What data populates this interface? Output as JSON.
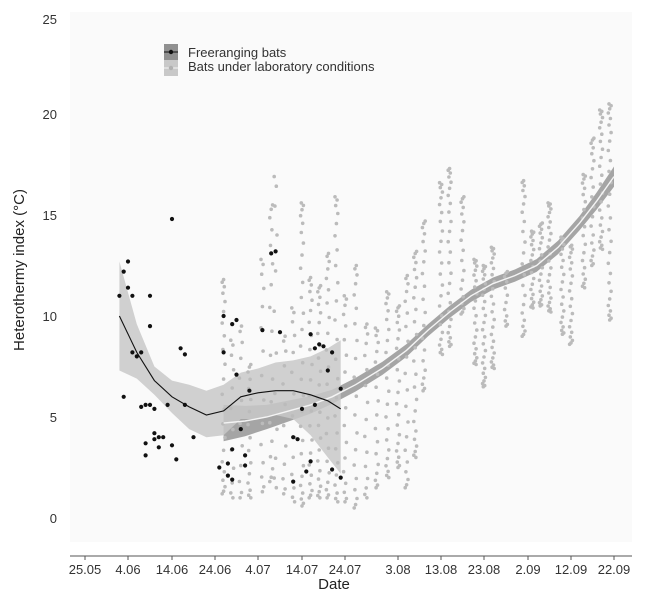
{
  "chart_data": {
    "type": "scatter",
    "xlabel": "Date",
    "ylabel": "Heterothermy index (°C)",
    "x_tick_labels": [
      "25.05",
      "4.06",
      "14.06",
      "24.06",
      "4.07",
      "14.07",
      "24.07",
      "3.08",
      "13.08",
      "23.08",
      "2.09",
      "12.09",
      "22.09"
    ],
    "y_tick_labels": [
      "0",
      "5",
      "10",
      "15",
      "20",
      "25"
    ],
    "xlim": [
      "2015-05-22",
      "2015-09-23"
    ],
    "ylim": [
      -1,
      25
    ],
    "grid": false,
    "legend_position": "top-left",
    "colors": {
      "freeranging": "#111111",
      "laboratory": "#bbbbbb",
      "free_band": "#c8c8c8",
      "lab_band": "#a5a5a5",
      "lab_fit_line": "#f4f4f4",
      "plot_background": "#fafafa"
    },
    "series": [
      {
        "name": "Freeranging bats",
        "marker": "dot",
        "points": [
          [
            "2015-06-02",
            11.0
          ],
          [
            "2015-06-03",
            12.2
          ],
          [
            "2015-06-03",
            6.0
          ],
          [
            "2015-06-04",
            12.7
          ],
          [
            "2015-06-04",
            11.4
          ],
          [
            "2015-06-05",
            8.2
          ],
          [
            "2015-06-05",
            11.0
          ],
          [
            "2015-06-06",
            8.0
          ],
          [
            "2015-06-07",
            8.2
          ],
          [
            "2015-06-07",
            5.5
          ],
          [
            "2015-06-08",
            5.6
          ],
          [
            "2015-06-08",
            3.7
          ],
          [
            "2015-06-08",
            3.1
          ],
          [
            "2015-06-09",
            11.0
          ],
          [
            "2015-06-09",
            9.5
          ],
          [
            "2015-06-09",
            5.6
          ],
          [
            "2015-06-10",
            4.2
          ],
          [
            "2015-06-10",
            3.9
          ],
          [
            "2015-06-10",
            5.4
          ],
          [
            "2015-06-11",
            4.0
          ],
          [
            "2015-06-11",
            3.5
          ],
          [
            "2015-06-12",
            4.0
          ],
          [
            "2015-06-13",
            5.6
          ],
          [
            "2015-06-14",
            14.8
          ],
          [
            "2015-06-14",
            3.6
          ],
          [
            "2015-06-15",
            2.9
          ],
          [
            "2015-06-16",
            8.4
          ],
          [
            "2015-06-17",
            8.1
          ],
          [
            "2015-06-17",
            5.6
          ],
          [
            "2015-06-19",
            4.0
          ],
          [
            "2015-06-25",
            2.5
          ],
          [
            "2015-06-26",
            10.0
          ],
          [
            "2015-06-26",
            8.2
          ],
          [
            "2015-06-27",
            2.7
          ],
          [
            "2015-06-27",
            2.1
          ],
          [
            "2015-06-28",
            9.6
          ],
          [
            "2015-06-28",
            3.4
          ],
          [
            "2015-06-28",
            1.9
          ],
          [
            "2015-06-29",
            9.8
          ],
          [
            "2015-06-29",
            7.1
          ],
          [
            "2015-06-30",
            4.4
          ],
          [
            "2015-07-01",
            3.1
          ],
          [
            "2015-07-01",
            2.6
          ],
          [
            "2015-07-02",
            6.3
          ],
          [
            "2015-07-05",
            9.3
          ],
          [
            "2015-07-07",
            13.1
          ],
          [
            "2015-07-08",
            13.2
          ],
          [
            "2015-07-09",
            9.2
          ],
          [
            "2015-07-12",
            4.0
          ],
          [
            "2015-07-12",
            1.8
          ],
          [
            "2015-07-13",
            3.9
          ],
          [
            "2015-07-14",
            5.4
          ],
          [
            "2015-07-15",
            2.3
          ],
          [
            "2015-07-16",
            2.8
          ],
          [
            "2015-07-16",
            9.1
          ],
          [
            "2015-07-17",
            8.4
          ],
          [
            "2015-07-17",
            5.6
          ],
          [
            "2015-07-18",
            8.6
          ],
          [
            "2015-07-19",
            8.5
          ],
          [
            "2015-07-20",
            7.3
          ],
          [
            "2015-07-21",
            2.4
          ],
          [
            "2015-07-21",
            8.2
          ],
          [
            "2015-07-23",
            2.0
          ],
          [
            "2015-07-23",
            6.4
          ]
        ],
        "fit": [
          [
            "2015-06-02",
            10.0
          ],
          [
            "2015-06-06",
            8.2
          ],
          [
            "2015-06-10",
            6.8
          ],
          [
            "2015-06-14",
            6.0
          ],
          [
            "2015-06-18",
            5.5
          ],
          [
            "2015-06-22",
            5.1
          ],
          [
            "2015-06-26",
            5.3
          ],
          [
            "2015-06-30",
            6.0
          ],
          [
            "2015-07-04",
            6.2
          ],
          [
            "2015-07-08",
            6.3
          ],
          [
            "2015-07-12",
            6.3
          ],
          [
            "2015-07-16",
            6.1
          ],
          [
            "2015-07-20",
            5.8
          ],
          [
            "2015-07-23",
            5.4
          ]
        ],
        "band_lower": [
          [
            "2015-06-02",
            7.3
          ],
          [
            "2015-06-06",
            6.9
          ],
          [
            "2015-06-10",
            6.1
          ],
          [
            "2015-06-14",
            5.2
          ],
          [
            "2015-06-18",
            4.4
          ],
          [
            "2015-06-22",
            4.0
          ],
          [
            "2015-06-26",
            4.1
          ],
          [
            "2015-06-30",
            4.9
          ],
          [
            "2015-07-04",
            4.9
          ],
          [
            "2015-07-08",
            5.1
          ],
          [
            "2015-07-12",
            4.9
          ],
          [
            "2015-07-16",
            4.1
          ],
          [
            "2015-07-20",
            3.0
          ],
          [
            "2015-07-23",
            2.2
          ]
        ],
        "band_upper": [
          [
            "2015-06-02",
            12.7
          ],
          [
            "2015-06-06",
            9.6
          ],
          [
            "2015-06-10",
            7.5
          ],
          [
            "2015-06-14",
            6.8
          ],
          [
            "2015-06-18",
            6.6
          ],
          [
            "2015-06-22",
            6.3
          ],
          [
            "2015-06-26",
            6.6
          ],
          [
            "2015-06-30",
            7.2
          ],
          [
            "2015-07-04",
            7.4
          ],
          [
            "2015-07-08",
            7.7
          ],
          [
            "2015-07-12",
            7.8
          ],
          [
            "2015-07-16",
            8.0
          ],
          [
            "2015-07-20",
            8.4
          ],
          [
            "2015-07-23",
            8.8
          ]
        ]
      },
      {
        "name": "Bats under laboratory conditions",
        "marker": "dot",
        "columns": [
          {
            "x": "2015-06-26",
            "ymin": 1.2,
            "ymax": 11.8,
            "n": 22
          },
          {
            "x": "2015-06-28",
            "ymin": 1.0,
            "ymax": 8.8,
            "n": 12
          },
          {
            "x": "2015-06-30",
            "ymin": 1.0,
            "ymax": 9.5,
            "n": 12
          },
          {
            "x": "2015-07-02",
            "ymin": 1.0,
            "ymax": 7.6,
            "n": 16
          },
          {
            "x": "2015-07-05",
            "ymin": 1.3,
            "ymax": 12.8,
            "n": 15
          },
          {
            "x": "2015-07-07",
            "ymin": 1.8,
            "ymax": 15.5,
            "n": 18
          },
          {
            "x": "2015-07-08",
            "ymin": 1.5,
            "ymax": 16.9,
            "n": 12
          },
          {
            "x": "2015-07-10",
            "ymin": 1.2,
            "ymax": 9.0,
            "n": 12
          },
          {
            "x": "2015-07-12",
            "ymin": 0.8,
            "ymax": 10.4,
            "n": 14
          },
          {
            "x": "2015-07-14",
            "ymin": 0.6,
            "ymax": 15.6,
            "n": 28
          },
          {
            "x": "2015-07-16",
            "ymin": 1.0,
            "ymax": 11.9,
            "n": 22
          },
          {
            "x": "2015-07-18",
            "ymin": 1.0,
            "ymax": 11.5,
            "n": 24
          },
          {
            "x": "2015-07-20",
            "ymin": 1.0,
            "ymax": 13.1,
            "n": 22
          },
          {
            "x": "2015-07-22",
            "ymin": 0.8,
            "ymax": 15.9,
            "n": 24
          },
          {
            "x": "2015-07-24",
            "ymin": 0.8,
            "ymax": 11.0,
            "n": 18
          },
          {
            "x": "2015-07-26",
            "ymin": 0.5,
            "ymax": 12.5,
            "n": 20
          },
          {
            "x": "2015-07-28",
            "ymin": 1.0,
            "ymax": 9.6,
            "n": 16
          },
          {
            "x": "2015-07-30",
            "ymin": 1.5,
            "ymax": 9.4,
            "n": 18
          },
          {
            "x": "2015-08-01",
            "ymin": 2.0,
            "ymax": 11.2,
            "n": 22
          },
          {
            "x": "2015-08-03",
            "ymin": 2.5,
            "ymax": 10.5,
            "n": 22
          },
          {
            "x": "2015-08-05",
            "ymin": 1.5,
            "ymax": 12.0,
            "n": 20
          },
          {
            "x": "2015-08-07",
            "ymin": 3.0,
            "ymax": 13.2,
            "n": 24
          },
          {
            "x": "2015-08-09",
            "ymin": 6.3,
            "ymax": 14.7,
            "n": 20
          },
          {
            "x": "2015-08-13",
            "ymin": 8.1,
            "ymax": 16.6,
            "n": 24
          },
          {
            "x": "2015-08-15",
            "ymin": 8.5,
            "ymax": 17.3,
            "n": 26
          },
          {
            "x": "2015-08-18",
            "ymin": 10.1,
            "ymax": 15.9,
            "n": 18
          },
          {
            "x": "2015-08-21",
            "ymin": 7.6,
            "ymax": 12.8,
            "n": 22
          },
          {
            "x": "2015-08-23",
            "ymin": 6.5,
            "ymax": 12.5,
            "n": 26
          },
          {
            "x": "2015-08-25",
            "ymin": 7.4,
            "ymax": 13.4,
            "n": 24
          },
          {
            "x": "2015-08-28",
            "ymin": 9.5,
            "ymax": 12.2,
            "n": 12
          },
          {
            "x": "2015-09-01",
            "ymin": 9.0,
            "ymax": 16.7,
            "n": 22
          },
          {
            "x": "2015-09-03",
            "ymin": 10.4,
            "ymax": 14.2,
            "n": 20
          },
          {
            "x": "2015-09-05",
            "ymin": 10.5,
            "ymax": 14.6,
            "n": 20
          },
          {
            "x": "2015-09-07",
            "ymin": 10.2,
            "ymax": 15.6,
            "n": 24
          },
          {
            "x": "2015-09-10",
            "ymin": 9.1,
            "ymax": 13.9,
            "n": 20
          },
          {
            "x": "2015-09-12",
            "ymin": 8.6,
            "ymax": 13.5,
            "n": 20
          },
          {
            "x": "2015-09-15",
            "ymin": 11.4,
            "ymax": 17.0,
            "n": 20
          },
          {
            "x": "2015-09-17",
            "ymin": 12.5,
            "ymax": 18.8,
            "n": 20
          },
          {
            "x": "2015-09-19",
            "ymin": 13.3,
            "ymax": 20.2,
            "n": 24
          },
          {
            "x": "2015-09-21",
            "ymin": 9.8,
            "ymax": 20.5,
            "n": 28
          }
        ],
        "fit": [
          [
            "2015-06-26",
            4.7
          ],
          [
            "2015-07-01",
            4.8
          ],
          [
            "2015-07-06",
            5.0
          ],
          [
            "2015-07-11",
            5.3
          ],
          [
            "2015-07-16",
            5.6
          ],
          [
            "2015-07-21",
            6.0
          ],
          [
            "2015-07-26",
            6.6
          ],
          [
            "2015-07-31",
            7.4
          ],
          [
            "2015-08-05",
            8.3
          ],
          [
            "2015-08-10",
            9.3
          ],
          [
            "2015-08-15",
            10.2
          ],
          [
            "2015-08-20",
            11.0
          ],
          [
            "2015-08-25",
            11.6
          ],
          [
            "2015-08-30",
            12.0
          ],
          [
            "2015-09-04",
            12.5
          ],
          [
            "2015-09-09",
            13.4
          ],
          [
            "2015-09-14",
            14.6
          ],
          [
            "2015-09-18",
            15.7
          ],
          [
            "2015-09-22",
            16.9
          ]
        ],
        "band_halfwidth": [
          [
            "2015-06-26",
            0.9
          ],
          [
            "2015-07-06",
            0.6
          ],
          [
            "2015-07-21",
            0.35
          ],
          [
            "2015-08-10",
            0.3
          ],
          [
            "2015-08-30",
            0.3
          ],
          [
            "2015-09-14",
            0.35
          ],
          [
            "2015-09-22",
            0.5
          ]
        ]
      }
    ]
  }
}
